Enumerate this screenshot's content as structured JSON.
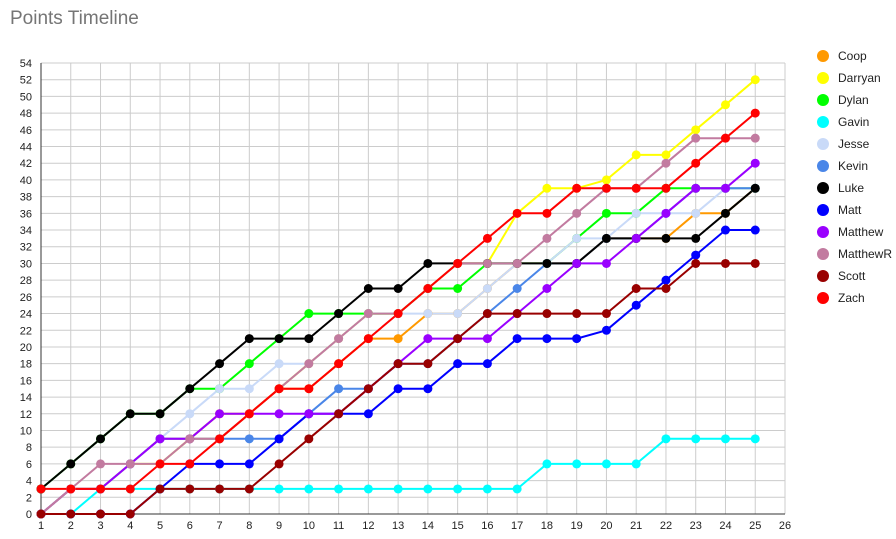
{
  "chart_data": {
    "type": "line",
    "title": "Points Timeline",
    "xlabel": "",
    "ylabel": "",
    "x": [
      1,
      2,
      3,
      4,
      5,
      6,
      7,
      8,
      9,
      10,
      11,
      12,
      13,
      14,
      15,
      16,
      17,
      18,
      19,
      20,
      21,
      22,
      23,
      24,
      25
    ],
    "xlim": [
      1,
      26
    ],
    "ylim": [
      0,
      54
    ],
    "x_ticks": [
      1,
      2,
      3,
      4,
      5,
      6,
      7,
      8,
      9,
      10,
      11,
      12,
      13,
      14,
      15,
      16,
      17,
      18,
      19,
      20,
      21,
      22,
      23,
      24,
      25,
      26
    ],
    "y_ticks": [
      0,
      2,
      4,
      6,
      8,
      10,
      12,
      14,
      16,
      18,
      20,
      22,
      24,
      26,
      28,
      30,
      32,
      34,
      36,
      38,
      40,
      42,
      44,
      46,
      48,
      50,
      52,
      54
    ],
    "grid": true,
    "legend_position": "right",
    "series": [
      {
        "name": "Coop",
        "color": "#ff9900",
        "values": [
          0,
          3,
          3,
          6,
          9,
          9,
          12,
          12,
          15,
          15,
          18,
          21,
          21,
          24,
          24,
          27,
          30,
          30,
          30,
          33,
          33,
          33,
          36,
          36,
          39
        ]
      },
      {
        "name": "Darryan",
        "color": "#ffff00",
        "values": [
          0,
          3,
          3,
          6,
          6,
          9,
          9,
          12,
          15,
          18,
          21,
          24,
          24,
          27,
          30,
          30,
          36,
          39,
          39,
          40,
          43,
          43,
          46,
          49,
          52
        ]
      },
      {
        "name": "Dylan",
        "color": "#00ff00",
        "values": [
          3,
          6,
          9,
          12,
          12,
          15,
          15,
          18,
          21,
          24,
          24,
          24,
          24,
          27,
          27,
          30,
          30,
          30,
          33,
          36,
          36,
          39,
          39,
          39,
          39
        ]
      },
      {
        "name": "Gavin",
        "color": "#00ffff",
        "values": [
          0,
          0,
          3,
          3,
          3,
          3,
          3,
          3,
          3,
          3,
          3,
          3,
          3,
          3,
          3,
          3,
          3,
          6,
          6,
          6,
          6,
          9,
          9,
          9,
          9
        ]
      },
      {
        "name": "Jesse",
        "color": "#c9daf8",
        "values": [
          0,
          3,
          3,
          6,
          9,
          12,
          15,
          15,
          18,
          18,
          21,
          24,
          24,
          24,
          24,
          27,
          30,
          30,
          33,
          33,
          36,
          36,
          36,
          39,
          39
        ]
      },
      {
        "name": "Kevin",
        "color": "#4a86e8",
        "values": [
          0,
          3,
          3,
          6,
          9,
          9,
          9,
          9,
          9,
          12,
          15,
          15,
          18,
          18,
          21,
          24,
          27,
          30,
          30,
          33,
          33,
          36,
          39,
          39,
          39
        ]
      },
      {
        "name": "Luke",
        "color": "#000000",
        "values": [
          3,
          6,
          9,
          12,
          12,
          15,
          18,
          21,
          21,
          21,
          24,
          27,
          27,
          30,
          30,
          30,
          30,
          30,
          30,
          33,
          33,
          33,
          33,
          36,
          39
        ]
      },
      {
        "name": "Matt",
        "color": "#0000ff",
        "values": [
          0,
          0,
          0,
          0,
          3,
          6,
          6,
          6,
          9,
          12,
          12,
          12,
          15,
          15,
          18,
          18,
          21,
          21,
          21,
          22,
          25,
          28,
          31,
          34,
          34
        ]
      },
      {
        "name": "Matthew",
        "color": "#9900ff",
        "values": [
          0,
          3,
          3,
          6,
          9,
          9,
          12,
          12,
          12,
          12,
          12,
          15,
          18,
          21,
          21,
          21,
          24,
          27,
          30,
          30,
          33,
          36,
          39,
          39,
          42
        ]
      },
      {
        "name": "MatthewR",
        "color": "#c27ba0",
        "values": [
          0,
          3,
          6,
          6,
          6,
          9,
          9,
          12,
          15,
          18,
          21,
          24,
          24,
          27,
          30,
          30,
          30,
          33,
          36,
          39,
          39,
          42,
          45,
          45,
          45
        ]
      },
      {
        "name": "Scott",
        "color": "#990000",
        "values": [
          0,
          0,
          0,
          0,
          3,
          3,
          3,
          3,
          6,
          9,
          12,
          15,
          18,
          18,
          21,
          24,
          24,
          24,
          24,
          24,
          27,
          27,
          30,
          30,
          30
        ]
      },
      {
        "name": "Zach",
        "color": "#ff0000",
        "values": [
          3,
          3,
          3,
          3,
          6,
          6,
          9,
          12,
          15,
          15,
          18,
          21,
          24,
          27,
          30,
          33,
          36,
          36,
          39,
          39,
          39,
          39,
          42,
          45,
          48
        ]
      }
    ]
  }
}
